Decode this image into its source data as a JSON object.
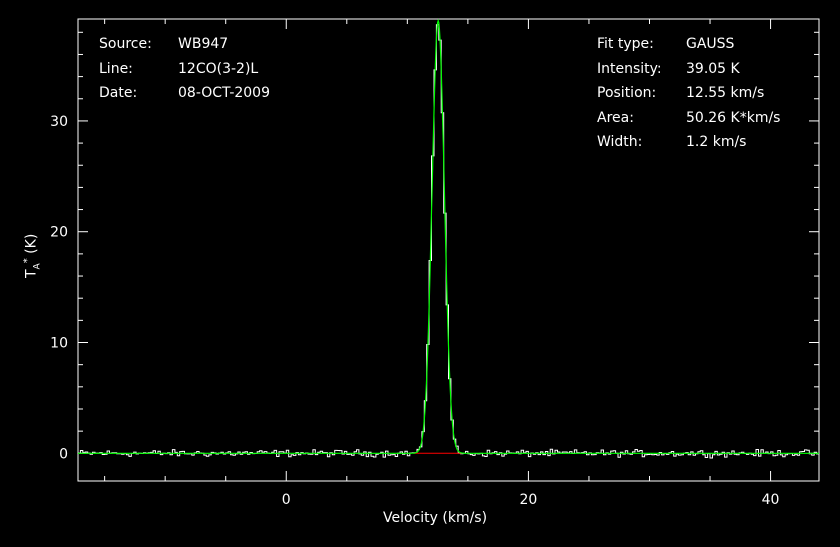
{
  "info_left": [
    {
      "key": "Source:",
      "value": "WB947"
    },
    {
      "key": "Line:",
      "value": "12CO(3-2)L"
    },
    {
      "key": "Date:",
      "value": "08-OCT-2009"
    }
  ],
  "info_right": [
    {
      "key": "Fit type:",
      "value": "GAUSS"
    },
    {
      "key": "Intensity:",
      "value": "39.05 K"
    },
    {
      "key": "Position:",
      "value": "12.55 km/s"
    },
    {
      "key": "Area:",
      "value": "50.26 K*km/s"
    },
    {
      "key": "Width:",
      "value": "1.2 km/s"
    }
  ],
  "colors": {
    "background": "#000000",
    "axes": "#ffffff",
    "spectrum": "#ffffff",
    "fit": "#00ff00",
    "baseline": "#ff0000"
  },
  "chart_data": {
    "type": "line",
    "xlabel": "Velocity (km/s)",
    "ylabel": "T_A* (K)",
    "xlim": [
      -17.2,
      44.0
    ],
    "ylim": [
      -2.5,
      39.2
    ],
    "xticks": [
      0,
      20,
      40
    ],
    "yticks": [
      0,
      10,
      20,
      30
    ],
    "grid": false,
    "noise_rms_K": 0.15,
    "series": [
      {
        "role": "spectrum",
        "x_range": [
          -17.2,
          44.0
        ],
        "channel_width": 0.2,
        "gaussian_component": {
          "amplitude": 39.05,
          "center": 12.55,
          "fwhm": 1.2
        }
      },
      {
        "role": "gaussian-fit",
        "amplitude": 39.05,
        "center": 12.55,
        "fwhm": 1.2
      },
      {
        "role": "baseline",
        "x": [
          10.5,
          14.5
        ],
        "y": [
          0,
          0
        ]
      }
    ]
  }
}
